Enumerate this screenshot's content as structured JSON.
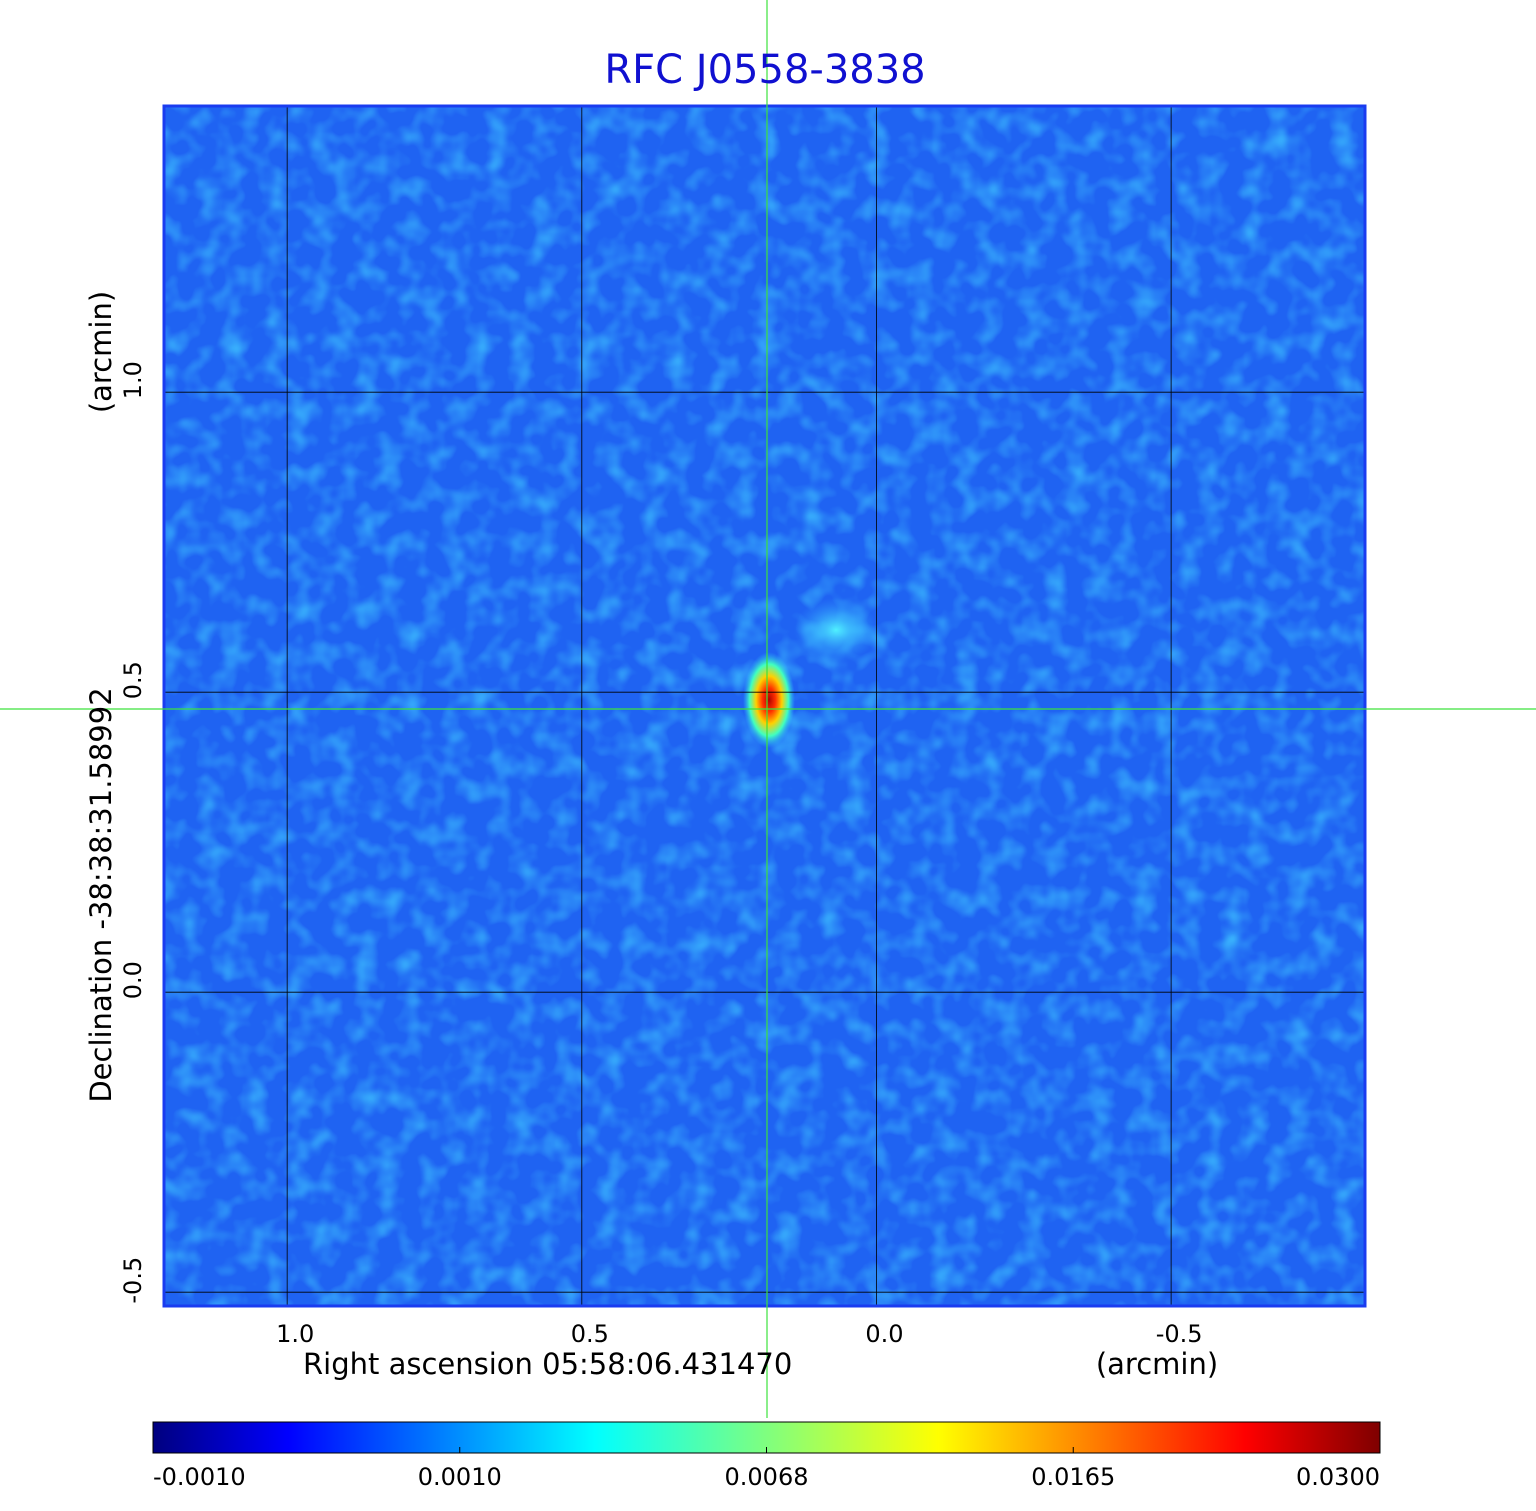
{
  "chart_data": {
    "type": "heatmap",
    "title": "RFC J0558-3838",
    "x_label": "Right ascension  05:58:06.431470",
    "x_unit": "(arcmin)",
    "y_label": "Declination  -38:38:31.58992",
    "y_unit": "(arcmin)",
    "xlim": [
      1.209,
      -0.829
    ],
    "ylim": [
      -0.523,
      1.477
    ],
    "xticks": [
      {
        "value": 1,
        "label": "1.0"
      },
      0.5,
      {
        "value": 0,
        "label": "0.0"
      },
      -0.5
    ],
    "yticks": [
      -0.5,
      {
        "value": 0,
        "label": "0.0"
      },
      0.5,
      {
        "value": 1,
        "label": "1.0"
      }
    ],
    "grid": true,
    "colorbar_ticks": [
      {
        "value": -0.001,
        "label": "-0.0010"
      },
      {
        "value": 0.001,
        "label": "0.0010"
      },
      {
        "value": 0.0068,
        "label": "0.0068"
      },
      {
        "value": 0.0165,
        "label": "0.0165"
      },
      {
        "value": 0.03,
        "label": "0.0300"
      }
    ]
  }
}
